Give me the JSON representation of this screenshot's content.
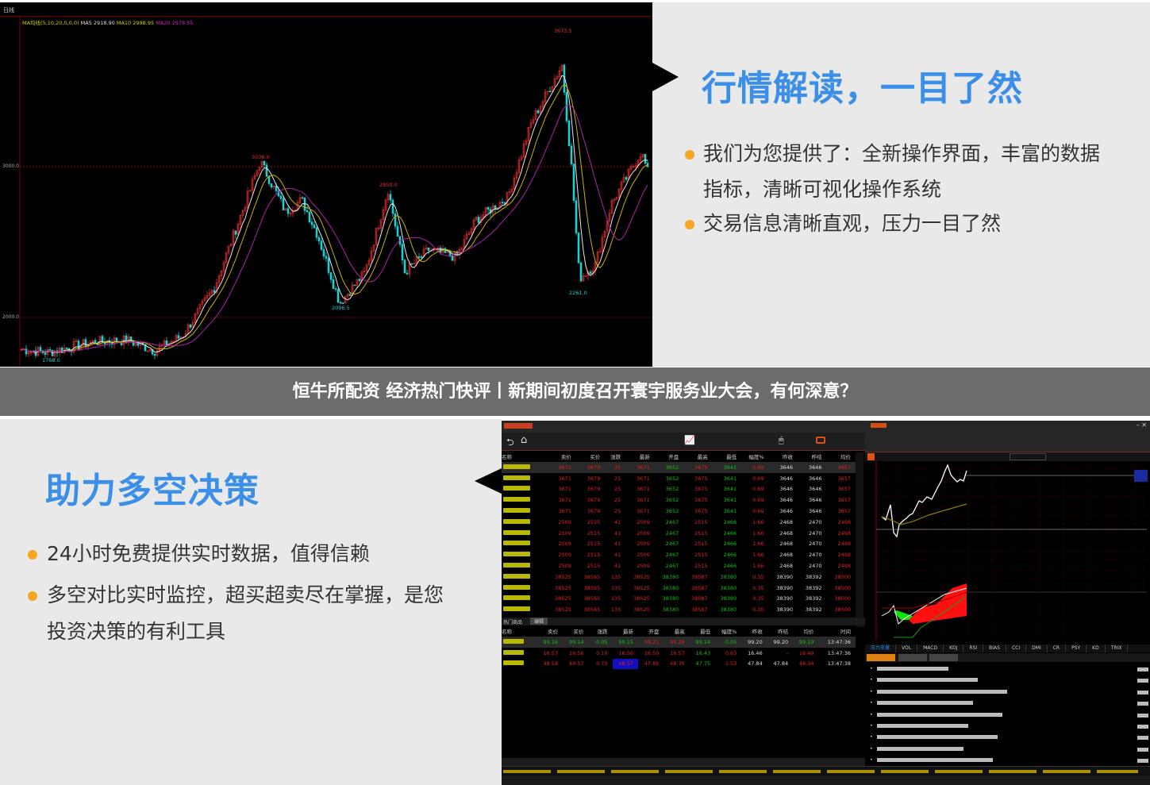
{
  "top_panel": {
    "heading": "行情解读，一目了然",
    "bullets": [
      "我们为您提供了：全新操作界面，丰富的数据",
      "指标，清晰可视化操作系统",
      "交易信息清晰直观，压力一目了然"
    ],
    "accent": "#3b8fe8",
    "bullet_color": "#f6a623"
  },
  "banner": {
    "text": "恒牛所配资 经济热门快评丨新期间初度召开寰宇服务业大会，有何深意？"
  },
  "bottom_panel": {
    "heading": "助力多空决策",
    "bullets": [
      "24小时免费提供实时数据，值得信赖",
      "多空对比实时监控，超买超卖尽在掌握，是您",
      "投资决策的有利工具"
    ]
  },
  "kline_chart": {
    "period": "日线",
    "ma_legend": "MA均线(5,10,20,0,0,0)",
    "ma5": "MA5 2918.90",
    "ma10": "MA10 2998.95",
    "ma20": "MA20 2978.55",
    "y_ticks": [
      "3000.0",
      "2000.0"
    ],
    "annotations": {
      "high": "3673.5",
      "peak1": "3036.0",
      "peak2": "2850.0",
      "low1": "2096.5",
      "low2": "2261.0",
      "start_low": "1768.0"
    },
    "price_path": [
      1790,
      1768,
      1840,
      1850,
      1780,
      1880,
      2200,
      2700,
      3036,
      2700,
      2780,
      2550,
      2097,
      2300,
      2850,
      2300,
      2450,
      2400,
      2650,
      2800,
      3300,
      3673,
      3000,
      2261,
      2350,
      2750,
      3100,
      2900
    ],
    "colors": {
      "up": "#e03030",
      "down": "#20d0d0",
      "ma5": "#e8e8e8",
      "ma10": "#c8b400",
      "ma20": "#b020b0"
    }
  },
  "app": {
    "table": {
      "headers": [
        "名称",
        "卖价",
        "买价",
        "涨跌",
        "最新",
        "开盘",
        "最高",
        "最低",
        "幅度%",
        "昨收",
        "昨结",
        "均价"
      ],
      "groups": [
        {
          "count": 5,
          "values": [
            "3671",
            "3679",
            "25",
            "3671",
            "3652",
            "3675",
            "3641",
            "0.69",
            "3646",
            "3646",
            "3657"
          ]
        },
        {
          "count": 5,
          "values": [
            "2509",
            "2515",
            "41",
            "2509",
            "2467",
            "2515",
            "2466",
            "1.66",
            "2468",
            "2470",
            "2498"
          ]
        },
        {
          "count": 4,
          "values": [
            "38525",
            "38565",
            "135",
            "38525",
            "38380",
            "38587",
            "38380",
            "0.35",
            "38390",
            "38392",
            "38500"
          ]
        }
      ]
    },
    "hot": {
      "tab": "热门商品",
      "edit": "编辑",
      "headers": [
        "名称",
        "卖价",
        "买价",
        "涨跌",
        "最新",
        "开盘",
        "最高",
        "最低",
        "幅度%",
        "昨收",
        "昨结",
        "均价",
        "时间"
      ],
      "rows": [
        [
          "99.16",
          "99.14",
          "-0.05",
          "99.15",
          "99.21",
          "99.26",
          "99.14",
          "-0.05",
          "99.20",
          "99.20",
          "99.19",
          "13:47:36"
        ],
        [
          "16.57",
          "16.56",
          "0.10",
          "16.56",
          "16.50",
          "16.57",
          "16.43",
          "0.63",
          "16.46",
          "-",
          "16.49",
          "13:47:36"
        ],
        [
          "48.58",
          "48.57",
          "0.73",
          "48.57",
          "47.85",
          "48.70",
          "47.75",
          "1.53",
          "47.84",
          "47.84",
          "48.34",
          "13:47:38"
        ]
      ]
    },
    "indicator_tabs": [
      "压力支撑",
      "VOL",
      "MACD",
      "KDJ",
      "RSI",
      "BIAS",
      "CCI",
      "DMI",
      "CR",
      "PSY",
      "KD",
      "TRIX"
    ]
  }
}
